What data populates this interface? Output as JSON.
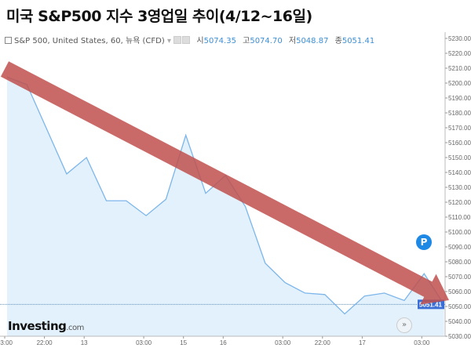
{
  "title": "미국 S&P500 지수 3영업일 추이(4/12~16일)",
  "legend": {
    "symbol": "S&P 500, United States, 60, 뉴욕 (CFD)",
    "open_label": "시",
    "open": "5074.35",
    "high_label": "고",
    "high": "5074.70",
    "low_label": "저",
    "low": "5048.87",
    "close_label": "종",
    "close": "5051.41"
  },
  "logo": {
    "main": "Investing",
    "suffix": ".com"
  },
  "badge": "P",
  "scroll_button": "»",
  "colors": {
    "line": "#7db6ea",
    "fill": "#e2f1fb",
    "arrow": "#c0504d",
    "price_label": "#3b6fd6"
  },
  "chart_data": {
    "type": "area",
    "series": [
      {
        "values": [
          5204,
          5199,
          5169,
          5139,
          5150,
          5121,
          5121,
          5111,
          5122,
          5165,
          5126,
          5138,
          5117,
          5079,
          5066,
          5059,
          5058,
          5045,
          5057,
          5059,
          5054,
          5072,
          5051.41
        ]
      }
    ],
    "ylim": [
      5030,
      5230
    ],
    "y_ticks": [
      "5230.00",
      "5220.00",
      "5210.00",
      "5200.00",
      "5190.00",
      "5180.00",
      "5170.00",
      "5160.00",
      "5150.00",
      "5140.00",
      "5130.00",
      "5120.00",
      "5110.00",
      "5100.00",
      "5090.00",
      "5080.00",
      "5070.00",
      "5060.00",
      "5050.00",
      "5040.00",
      "5030.00"
    ],
    "x_ticks": [
      {
        "index": 0,
        "label": "03:00"
      },
      {
        "index": 2,
        "label": "22:00"
      },
      {
        "index": 4,
        "label": "13"
      },
      {
        "index": 7,
        "label": "03:00"
      },
      {
        "index": 9,
        "label": "15"
      },
      {
        "index": 11,
        "label": "16"
      },
      {
        "index": 14,
        "label": "03:00"
      },
      {
        "index": 16,
        "label": "22:00"
      },
      {
        "index": 18,
        "label": "17"
      },
      {
        "index": 21,
        "label": "03:00"
      }
    ],
    "current_price": "5051.41",
    "trend_arrow": "downward"
  }
}
